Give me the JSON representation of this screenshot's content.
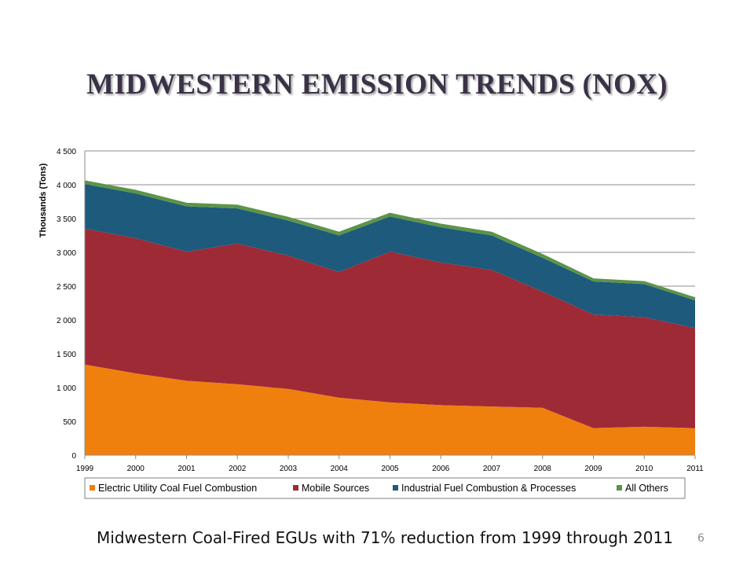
{
  "slide": {
    "title": "MIDWESTERN EMISSION TRENDS (NOX)",
    "caption": "Midwestern Coal-Fired EGUs with 71% reduction from 1999 through 2011",
    "page_number": "6"
  },
  "chart_data": {
    "type": "area",
    "stacked": true,
    "title": "",
    "xlabel": "",
    "ylabel": "Thousands (Tons)",
    "ylim": [
      0,
      4500
    ],
    "y_ticks": [
      0,
      500,
      1000,
      1500,
      2000,
      2500,
      3000,
      3500,
      4000,
      4500
    ],
    "y_tick_labels": [
      "0",
      "500",
      "1 000",
      "1 500",
      "2 000",
      "2 500",
      "3 000",
      "3 500",
      "4 000",
      "4 500"
    ],
    "categories": [
      "1999",
      "2000",
      "2001",
      "2002",
      "2003",
      "2004",
      "2005",
      "2006",
      "2007",
      "2008",
      "2009",
      "2010",
      "2011"
    ],
    "grid": "horizontal",
    "legend_position": "bottom",
    "series": [
      {
        "name": "Electric Utility Coal Fuel Combustion",
        "color": "#f0800e",
        "values": [
          1340,
          1210,
          1100,
          1050,
          980,
          850,
          780,
          740,
          720,
          700,
          400,
          420,
          400
        ]
      },
      {
        "name": "Mobile Sources",
        "color": "#9e2a36",
        "values": [
          2010,
          2000,
          1910,
          2080,
          1970,
          1860,
          2230,
          2110,
          2020,
          1720,
          1680,
          1620,
          1480
        ]
      },
      {
        "name": "Industrial Fuel Combustion & Processes",
        "color": "#1e5a7c",
        "values": [
          660,
          660,
          670,
          520,
          520,
          540,
          520,
          520,
          510,
          500,
          490,
          490,
          410
        ]
      },
      {
        "name": "All Others",
        "color": "#5c9448",
        "values": [
          40,
          40,
          40,
          40,
          40,
          40,
          40,
          40,
          40,
          40,
          30,
          30,
          30
        ]
      }
    ]
  }
}
